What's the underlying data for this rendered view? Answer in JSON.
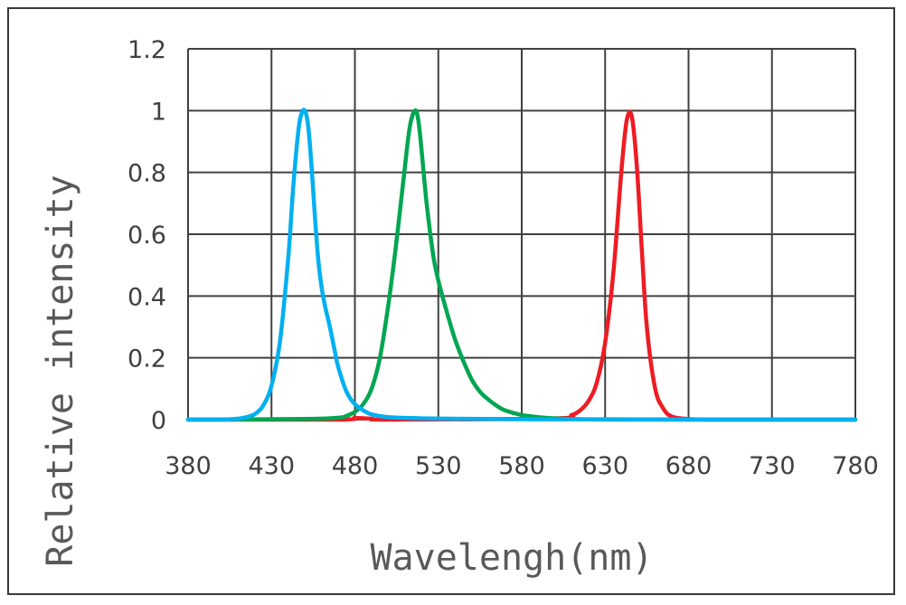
{
  "chart_data": {
    "type": "line",
    "title": "",
    "xlabel": "Wavelengh(nm)",
    "ylabel": "Relative intensity",
    "xlim": [
      380,
      780
    ],
    "ylim": [
      0,
      1.2
    ],
    "xticks": [
      380,
      430,
      480,
      530,
      580,
      630,
      680,
      730,
      780
    ],
    "yticks": [
      0,
      0.2,
      0.4,
      0.6,
      0.8,
      1,
      1.2
    ],
    "xtick_labels": [
      "380",
      "430",
      "480",
      "530",
      "580",
      "630",
      "680",
      "730",
      "780"
    ],
    "ytick_labels": [
      "0",
      "0.2",
      "0.4",
      "0.6",
      "0.8",
      "1",
      "1.2"
    ],
    "grid": true,
    "series": [
      {
        "name": "Blue",
        "color": "#00b0f0",
        "x": [
          380,
          400,
          410,
          415,
          420,
          425,
          430,
          435,
          440,
          443,
          446,
          448,
          450,
          452,
          454,
          456,
          458,
          460,
          462,
          465,
          468,
          470,
          475,
          480,
          485,
          490,
          500,
          520,
          560,
          600,
          650,
          700,
          780
        ],
        "y": [
          0.0,
          0.0,
          0.003,
          0.008,
          0.018,
          0.045,
          0.11,
          0.25,
          0.52,
          0.75,
          0.93,
          0.99,
          1.0,
          0.95,
          0.82,
          0.66,
          0.52,
          0.43,
          0.37,
          0.3,
          0.22,
          0.17,
          0.09,
          0.05,
          0.03,
          0.017,
          0.008,
          0.004,
          0.002,
          0.001,
          0.001,
          0.0,
          0.0
        ]
      },
      {
        "name": "Green",
        "color": "#00a651",
        "x": [
          380,
          450,
          470,
          475,
          480,
          485,
          490,
          495,
          500,
          505,
          510,
          513,
          516,
          518,
          520,
          523,
          527,
          530,
          535,
          540,
          545,
          550,
          555,
          560,
          565,
          570,
          580,
          590,
          600,
          620,
          650,
          780
        ],
        "y": [
          0.0,
          0.002,
          0.006,
          0.012,
          0.025,
          0.05,
          0.1,
          0.2,
          0.37,
          0.58,
          0.82,
          0.95,
          1.0,
          0.97,
          0.87,
          0.7,
          0.53,
          0.45,
          0.35,
          0.26,
          0.19,
          0.13,
          0.09,
          0.065,
          0.045,
          0.03,
          0.015,
          0.008,
          0.004,
          0.001,
          0.0,
          0.0
        ]
      },
      {
        "name": "Red",
        "color": "#ee1c24",
        "x": [
          380,
          470,
          480,
          490,
          500,
          600,
          610,
          615,
          620,
          625,
          630,
          635,
          640,
          643,
          646,
          649,
          652,
          655,
          660,
          665,
          670,
          680,
          700,
          780
        ],
        "y": [
          0.0,
          0.0,
          0.005,
          0.003,
          0.0,
          0.004,
          0.015,
          0.03,
          0.06,
          0.12,
          0.25,
          0.48,
          0.82,
          0.97,
          0.98,
          0.82,
          0.55,
          0.3,
          0.1,
          0.035,
          0.01,
          0.002,
          0.0,
          0.0
        ]
      }
    ]
  }
}
